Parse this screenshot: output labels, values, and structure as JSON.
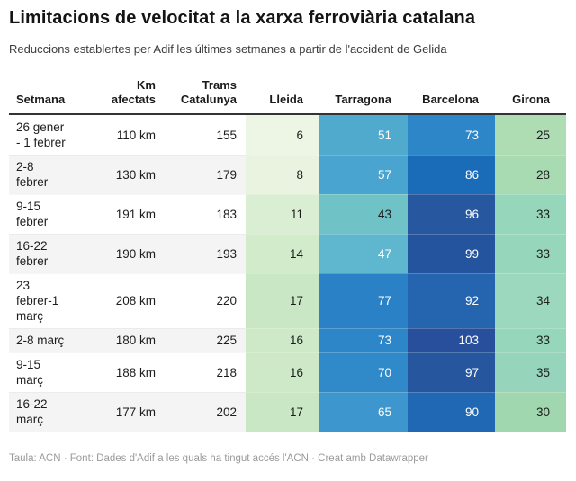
{
  "title": "Limitacions de velocitat a la xarxa ferroviària catalana",
  "subtitle": "Reduccions establertes per Adif les últimes setmanes a partir de l'accident de Gelida",
  "footer": "Taula: ACN · Font: Dades d'Adif a les quals ha tingut accés l'ACN · Creat amb Datawrapper",
  "colors": {
    "dark_text": "#1d1d1d",
    "white_text": "#ffffff",
    "zebra_stripe": "#f4f4f4",
    "header_rule": "#333333",
    "footer_text": "#9b9b9b",
    "heat_scale_low": "#edf6e5",
    "heat_scale_mid": "#4faace",
    "heat_scale_high": "#274f9b"
  },
  "table": {
    "columns": [
      {
        "key": "setmana",
        "label": "Setmana"
      },
      {
        "key": "km",
        "label": "Km\nafectats"
      },
      {
        "key": "trams",
        "label": "Trams\nCatalunya"
      },
      {
        "key": "lleida",
        "label": "Lleida"
      },
      {
        "key": "tarragona",
        "label": "Tarragona"
      },
      {
        "key": "barcelona",
        "label": "Barcelona"
      },
      {
        "key": "girona",
        "label": "Girona"
      }
    ],
    "rows": [
      {
        "setmana": "26 gener\n- 1 febrer",
        "km": "110 km",
        "trams": "155",
        "heat": [
          {
            "v": "6",
            "bg": "#edf6e5",
            "fg": "#1d1d1d"
          },
          {
            "v": "51",
            "bg": "#4faace",
            "fg": "#ffffff"
          },
          {
            "v": "73",
            "bg": "#2d86c8",
            "fg": "#ffffff"
          },
          {
            "v": "25",
            "bg": "#aedcb3",
            "fg": "#1d1d1d"
          }
        ]
      },
      {
        "setmana": "2-8\nfebrer",
        "km": "130 km",
        "trams": "179",
        "heat": [
          {
            "v": "8",
            "bg": "#e9f3e0",
            "fg": "#1d1d1d"
          },
          {
            "v": "57",
            "bg": "#49a4cf",
            "fg": "#ffffff"
          },
          {
            "v": "86",
            "bg": "#1b6cb8",
            "fg": "#ffffff"
          },
          {
            "v": "28",
            "bg": "#a9dbb2",
            "fg": "#1d1d1d"
          }
        ]
      },
      {
        "setmana": "9-15\nfebrer",
        "km": "191 km",
        "trams": "183",
        "heat": [
          {
            "v": "11",
            "bg": "#d9eed3",
            "fg": "#1d1d1d"
          },
          {
            "v": "43",
            "bg": "#6fc3c6",
            "fg": "#1d1d1d"
          },
          {
            "v": "96",
            "bg": "#27579f",
            "fg": "#ffffff"
          },
          {
            "v": "33",
            "bg": "#96d6ba",
            "fg": "#1d1d1d"
          }
        ]
      },
      {
        "setmana": "16-22\nfebrer",
        "km": "190 km",
        "trams": "193",
        "heat": [
          {
            "v": "14",
            "bg": "#d2ebcb",
            "fg": "#1d1d1d"
          },
          {
            "v": "47",
            "bg": "#5fb7cf",
            "fg": "#ffffff"
          },
          {
            "v": "99",
            "bg": "#25549e",
            "fg": "#ffffff"
          },
          {
            "v": "33",
            "bg": "#96d6ba",
            "fg": "#1d1d1d"
          }
        ]
      },
      {
        "setmana": "23\nfebrer-1\nmarç",
        "km": "208 km",
        "trams": "220",
        "heat": [
          {
            "v": "17",
            "bg": "#c9e7c5",
            "fg": "#1d1d1d"
          },
          {
            "v": "77",
            "bg": "#2b81c5",
            "fg": "#ffffff"
          },
          {
            "v": "92",
            "bg": "#2564ae",
            "fg": "#ffffff"
          },
          {
            "v": "34",
            "bg": "#9cd8bd",
            "fg": "#1d1d1d"
          }
        ]
      },
      {
        "setmana": "2-8 març",
        "km": "180 km",
        "trams": "225",
        "heat": [
          {
            "v": "16",
            "bg": "#cde9c7",
            "fg": "#1d1d1d"
          },
          {
            "v": "73",
            "bg": "#2d86c8",
            "fg": "#ffffff"
          },
          {
            "v": "103",
            "bg": "#274f9b",
            "fg": "#ffffff"
          },
          {
            "v": "33",
            "bg": "#96d6ba",
            "fg": "#1d1d1d"
          }
        ]
      },
      {
        "setmana": "9-15\nmarç",
        "km": "188 km",
        "trams": "218",
        "heat": [
          {
            "v": "16",
            "bg": "#cde9c7",
            "fg": "#1d1d1d"
          },
          {
            "v": "70",
            "bg": "#3089c9",
            "fg": "#ffffff"
          },
          {
            "v": "97",
            "bg": "#26569e",
            "fg": "#ffffff"
          },
          {
            "v": "35",
            "bg": "#97d4bc",
            "fg": "#1d1d1d"
          }
        ]
      },
      {
        "setmana": "16-22\nmarç",
        "km": "177 km",
        "trams": "202",
        "heat": [
          {
            "v": "17",
            "bg": "#c9e7c5",
            "fg": "#1d1d1d"
          },
          {
            "v": "65",
            "bg": "#3d97ce",
            "fg": "#ffffff"
          },
          {
            "v": "90",
            "bg": "#2067b4",
            "fg": "#ffffff"
          },
          {
            "v": "30",
            "bg": "#a0d7ae",
            "fg": "#1d1d1d"
          }
        ]
      }
    ]
  },
  "chart_data": {
    "type": "table",
    "title": "Limitacions de velocitat a la xarxa ferroviària catalana",
    "subtitle": "Reduccions establertes per Adif les últimes setmanes a partir de l'accident de Gelida",
    "columns": [
      "Setmana",
      "Km afectats",
      "Trams Catalunya",
      "Lleida",
      "Tarragona",
      "Barcelona",
      "Girona"
    ],
    "rows": [
      [
        "26 gener - 1 febrer",
        "110 km",
        155,
        6,
        51,
        73,
        25
      ],
      [
        "2-8 febrer",
        "130 km",
        179,
        8,
        57,
        86,
        28
      ],
      [
        "9-15 febrer",
        "191 km",
        183,
        11,
        43,
        96,
        33
      ],
      [
        "16-22 febrer",
        "190 km",
        193,
        14,
        47,
        99,
        33
      ],
      [
        "23 febrer-1 març",
        "208 km",
        220,
        17,
        77,
        92,
        34
      ],
      [
        "2-8 març",
        "180 km",
        225,
        16,
        73,
        103,
        33
      ],
      [
        "9-15 març",
        "188 km",
        218,
        16,
        70,
        97,
        35
      ],
      [
        "16-22 març",
        "177 km",
        202,
        17,
        65,
        90,
        30
      ]
    ],
    "heatmap_columns": [
      "Lleida",
      "Tarragona",
      "Barcelona",
      "Girona"
    ],
    "palette_hint": "sequential green (low) to dark blue (high)",
    "source_note": "Taula: ACN · Font: Dades d'Adif a les quals ha tingut accés l'ACN · Creat amb Datawrapper"
  }
}
